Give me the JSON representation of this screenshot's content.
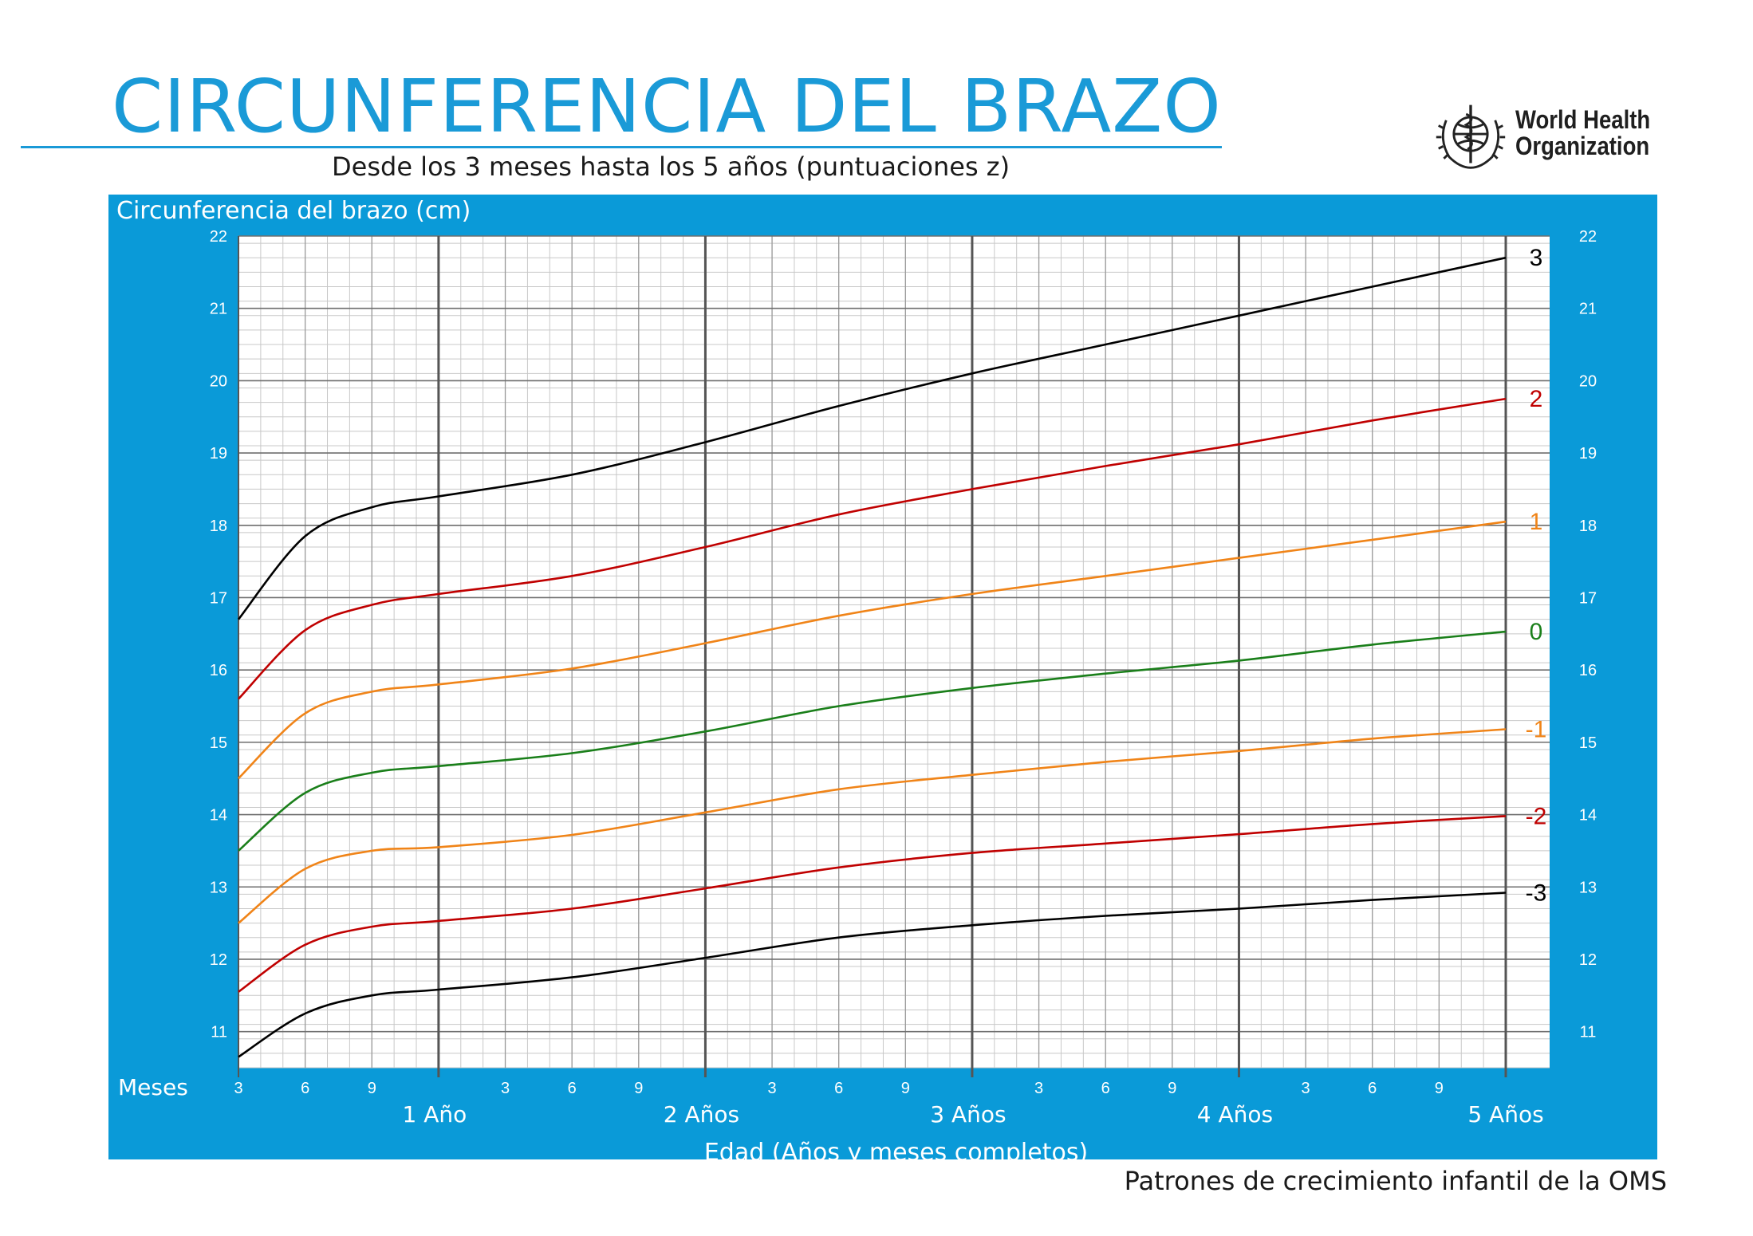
{
  "header": {
    "title": "CIRCUNFERENCIA DEL BRAZO",
    "subtitle": "Desde los 3 meses hasta los 5 años  (puntuaciones z)",
    "org_line1": "World Health",
    "org_line2": "Organization",
    "logo_icon": "who-emblem-icon"
  },
  "footer": {
    "note": "Patrones de crecimiento infantil de la OMS"
  },
  "colors": {
    "brand_blue": "#0a9ad8",
    "z3": "#000000",
    "z2": "#c00000",
    "z1": "#f08418",
    "z0": "#1a7f1a"
  },
  "chart_data": {
    "type": "line",
    "title": "CIRCUNFERENCIA DEL BRAZO",
    "ylabel": "Circunferencia del brazo (cm)",
    "xlabel": "Edad (Años y meses completos)",
    "x_corner_label": "Meses",
    "x_unit": "months",
    "xlim": [
      3,
      60
    ],
    "ylim": [
      10.5,
      22
    ],
    "y_ticks": [
      11,
      12,
      13,
      14,
      15,
      16,
      17,
      18,
      19,
      20,
      21,
      22
    ],
    "x_month_ticks": [
      {
        "x": 3,
        "label": "3"
      },
      {
        "x": 6,
        "label": "6"
      },
      {
        "x": 9,
        "label": "9"
      },
      {
        "x": 15,
        "label": "3"
      },
      {
        "x": 18,
        "label": "6"
      },
      {
        "x": 21,
        "label": "9"
      },
      {
        "x": 27,
        "label": "3"
      },
      {
        "x": 30,
        "label": "6"
      },
      {
        "x": 33,
        "label": "9"
      },
      {
        "x": 39,
        "label": "3"
      },
      {
        "x": 42,
        "label": "6"
      },
      {
        "x": 45,
        "label": "9"
      },
      {
        "x": 51,
        "label": "3"
      },
      {
        "x": 54,
        "label": "6"
      },
      {
        "x": 57,
        "label": "9"
      }
    ],
    "x_year_ticks": [
      {
        "x": 12,
        "label": "1 Año"
      },
      {
        "x": 24,
        "label": "2 Años"
      },
      {
        "x": 36,
        "label": "3 Años"
      },
      {
        "x": 48,
        "label": "4 Años"
      },
      {
        "x": 60,
        "label": "5 Años"
      }
    ],
    "grid": true,
    "series": [
      {
        "name": "3",
        "color": "#000000",
        "x": [
          3,
          6,
          9,
          12,
          18,
          24,
          30,
          36,
          42,
          48,
          54,
          60
        ],
        "y": [
          16.7,
          17.85,
          18.25,
          18.4,
          18.7,
          19.15,
          19.65,
          20.1,
          20.5,
          20.9,
          21.3,
          21.7
        ]
      },
      {
        "name": "2",
        "color": "#c00000",
        "x": [
          3,
          6,
          9,
          12,
          18,
          24,
          30,
          36,
          42,
          48,
          54,
          60
        ],
        "y": [
          15.6,
          16.55,
          16.9,
          17.05,
          17.3,
          17.7,
          18.15,
          18.5,
          18.82,
          19.12,
          19.45,
          19.75
        ]
      },
      {
        "name": "1",
        "color": "#f08418",
        "x": [
          3,
          6,
          9,
          12,
          18,
          24,
          30,
          36,
          42,
          48,
          54,
          60
        ],
        "y": [
          14.5,
          15.4,
          15.7,
          15.8,
          16.02,
          16.37,
          16.75,
          17.05,
          17.3,
          17.55,
          17.8,
          18.05
        ]
      },
      {
        "name": "0",
        "color": "#1a7f1a",
        "x": [
          3,
          6,
          9,
          12,
          18,
          24,
          30,
          36,
          42,
          48,
          54,
          60
        ],
        "y": [
          13.5,
          14.3,
          14.58,
          14.67,
          14.85,
          15.15,
          15.5,
          15.75,
          15.95,
          16.13,
          16.35,
          16.53
        ]
      },
      {
        "name": "-1",
        "color": "#f08418",
        "x": [
          3,
          6,
          9,
          12,
          18,
          24,
          30,
          36,
          42,
          48,
          54,
          60
        ],
        "y": [
          12.5,
          13.25,
          13.5,
          13.55,
          13.72,
          14.03,
          14.35,
          14.55,
          14.73,
          14.88,
          15.05,
          15.18
        ]
      },
      {
        "name": "-2",
        "color": "#c00000",
        "x": [
          3,
          6,
          9,
          12,
          18,
          24,
          30,
          36,
          42,
          48,
          54,
          60
        ],
        "y": [
          11.55,
          12.2,
          12.45,
          12.53,
          12.7,
          12.98,
          13.27,
          13.47,
          13.6,
          13.73,
          13.87,
          13.98
        ]
      },
      {
        "name": "-3",
        "color": "#000000",
        "x": [
          3,
          6,
          9,
          12,
          18,
          24,
          30,
          36,
          42,
          48,
          54,
          60
        ],
        "y": [
          10.65,
          11.25,
          11.5,
          11.58,
          11.75,
          12.02,
          12.3,
          12.47,
          12.6,
          12.7,
          12.82,
          12.92
        ]
      }
    ]
  }
}
